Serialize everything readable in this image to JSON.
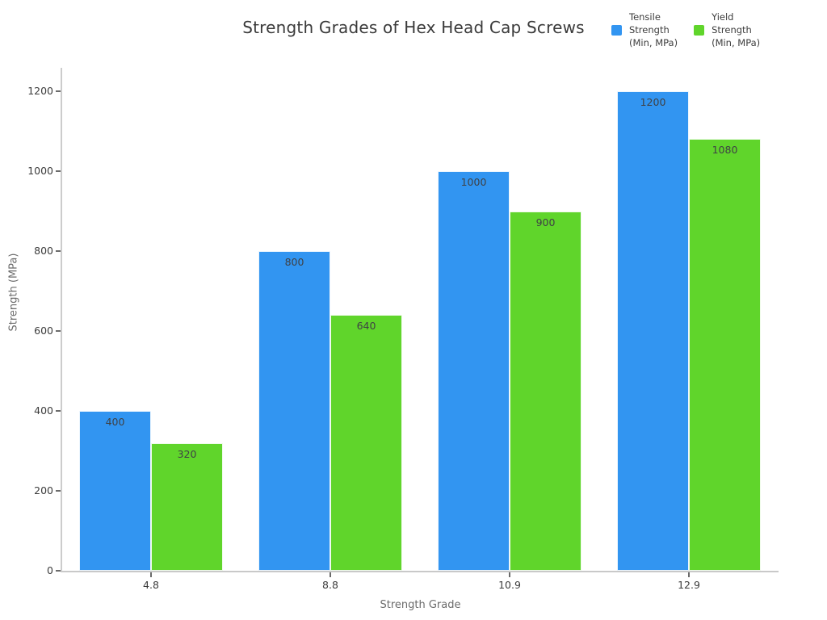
{
  "title": "Strength Grades of Hex Head Cap Screws",
  "colors": {
    "tensile_blue": "#3295f1",
    "yield_green": "#60d52b",
    "axis_line": "#cccccc",
    "text_dark": "#3c3c3c",
    "text_muted": "#6b6b6b"
  },
  "chart_data": {
    "type": "bar",
    "title": "Strength Grades of Hex Head Cap Screws",
    "xlabel": "Strength Grade",
    "ylabel": "Strength (MPa)",
    "categories": [
      "4.8",
      "8.8",
      "10.9",
      "12.9"
    ],
    "series": [
      {
        "name": "Tensile Strength (Min, MPa)",
        "legend_lines": "Tensile\nStrength\n(Min, MPa)",
        "color": "#3295f1",
        "values": [
          400,
          800,
          1000,
          1200
        ]
      },
      {
        "name": "Yield Strength (Min, MPa)",
        "legend_lines": "Yield\nStrength\n(Min, MPa)",
        "color": "#60d52b",
        "values": [
          320,
          640,
          900,
          1080
        ]
      }
    ],
    "bar_value_labels": [
      [
        400,
        800,
        1000,
        1200
      ],
      [
        320,
        640,
        900,
        1080
      ]
    ],
    "ylim": [
      0,
      1200
    ],
    "yticks": [
      0,
      200,
      400,
      600,
      800,
      1000,
      1200
    ],
    "grid": false,
    "legend_position": "top-right",
    "bar_labels_shown": true
  }
}
